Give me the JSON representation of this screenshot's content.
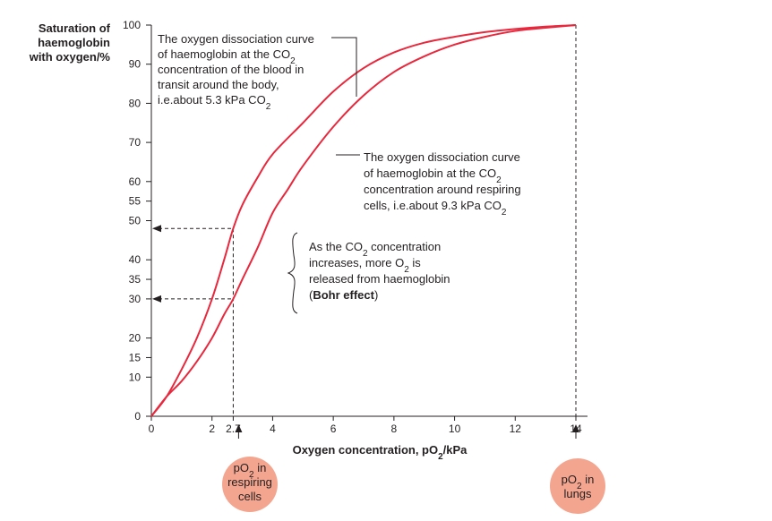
{
  "chart_data": {
    "type": "line",
    "xlabel": "Oxygen concentration, pO₂/kPa",
    "ylabel": [
      "Saturation of",
      "haemoglobin",
      "with oxygen/%"
    ],
    "xlim": [
      0,
      14
    ],
    "ylim": [
      0,
      100
    ],
    "x_ticks": [
      "0",
      "2",
      "2.7",
      "4",
      "6",
      "8",
      "10",
      "12",
      "14"
    ],
    "x_tick_values": [
      0,
      2,
      2.7,
      4,
      6,
      8,
      10,
      12,
      14
    ],
    "y_ticks": [
      "0",
      "10",
      "15",
      "20",
      "30",
      "35",
      "40",
      "50",
      "55",
      "60",
      "70",
      "80",
      "90",
      "100"
    ],
    "y_tick_values": [
      0,
      10,
      15,
      20,
      30,
      35,
      40,
      50,
      55,
      60,
      70,
      80,
      90,
      100
    ],
    "series": [
      {
        "name": "",
        "color": "#e8283d",
        "x": [
          0,
          0.5,
          1.0,
          1.5,
          2.0,
          2.4,
          2.7,
          3.0,
          3.5,
          4.0,
          5.0,
          6.0,
          7.0,
          8.0,
          9.0,
          10.0,
          11.0,
          12.0,
          13.0,
          14.0
        ],
        "y": [
          0,
          5,
          12,
          20,
          30,
          40,
          48,
          54,
          61,
          67,
          75,
          83,
          89,
          93,
          95.5,
          97,
          98.2,
          99,
          99.6,
          100
        ]
      },
      {
        "name": "",
        "color": "#e8283d",
        "x": [
          0,
          0.5,
          1.0,
          1.5,
          2.0,
          2.4,
          2.7,
          3.0,
          3.5,
          4.0,
          4.5,
          5.0,
          6.0,
          7.0,
          8.0,
          9.0,
          10.0,
          11.0,
          12.0,
          13.0,
          14.0
        ],
        "y": [
          0,
          5,
          9,
          14,
          20,
          26,
          30,
          35,
          43,
          52,
          58,
          64,
          74,
          82,
          88,
          92,
          95,
          97,
          98.5,
          99.3,
          100
        ]
      }
    ],
    "annotations": {
      "top_curve": [
        "The oxygen dissociation curve",
        "of haemoglobin at the CO₂",
        "concentration of the blood in",
        "transit around the body,",
        "i.e.about 5.3 kPa CO₂"
      ],
      "bottom_curve": [
        "The oxygen dissociation curve",
        "of haemoglobin at the CO₂",
        "concentration around respiring",
        "cells, i.e.about 9.3 kPa CO₂"
      ],
      "bohr_lines": [
        "As the CO₂ concentration",
        "increases, more O₂ is",
        "released from haemoglobin"
      ],
      "bohr_bold": "Bohr effect",
      "bohr_open": "(",
      "bohr_close": ")",
      "respiring_label": [
        "pO₂ in",
        "respiring",
        "cells"
      ],
      "lungs_label": [
        "pO₂ in",
        "lungs"
      ]
    },
    "marker_x": [
      2.7,
      14
    ],
    "marker_y": [
      48,
      30
    ],
    "bubble_color": "#f4a58f",
    "grid": false,
    "legend": "none"
  }
}
